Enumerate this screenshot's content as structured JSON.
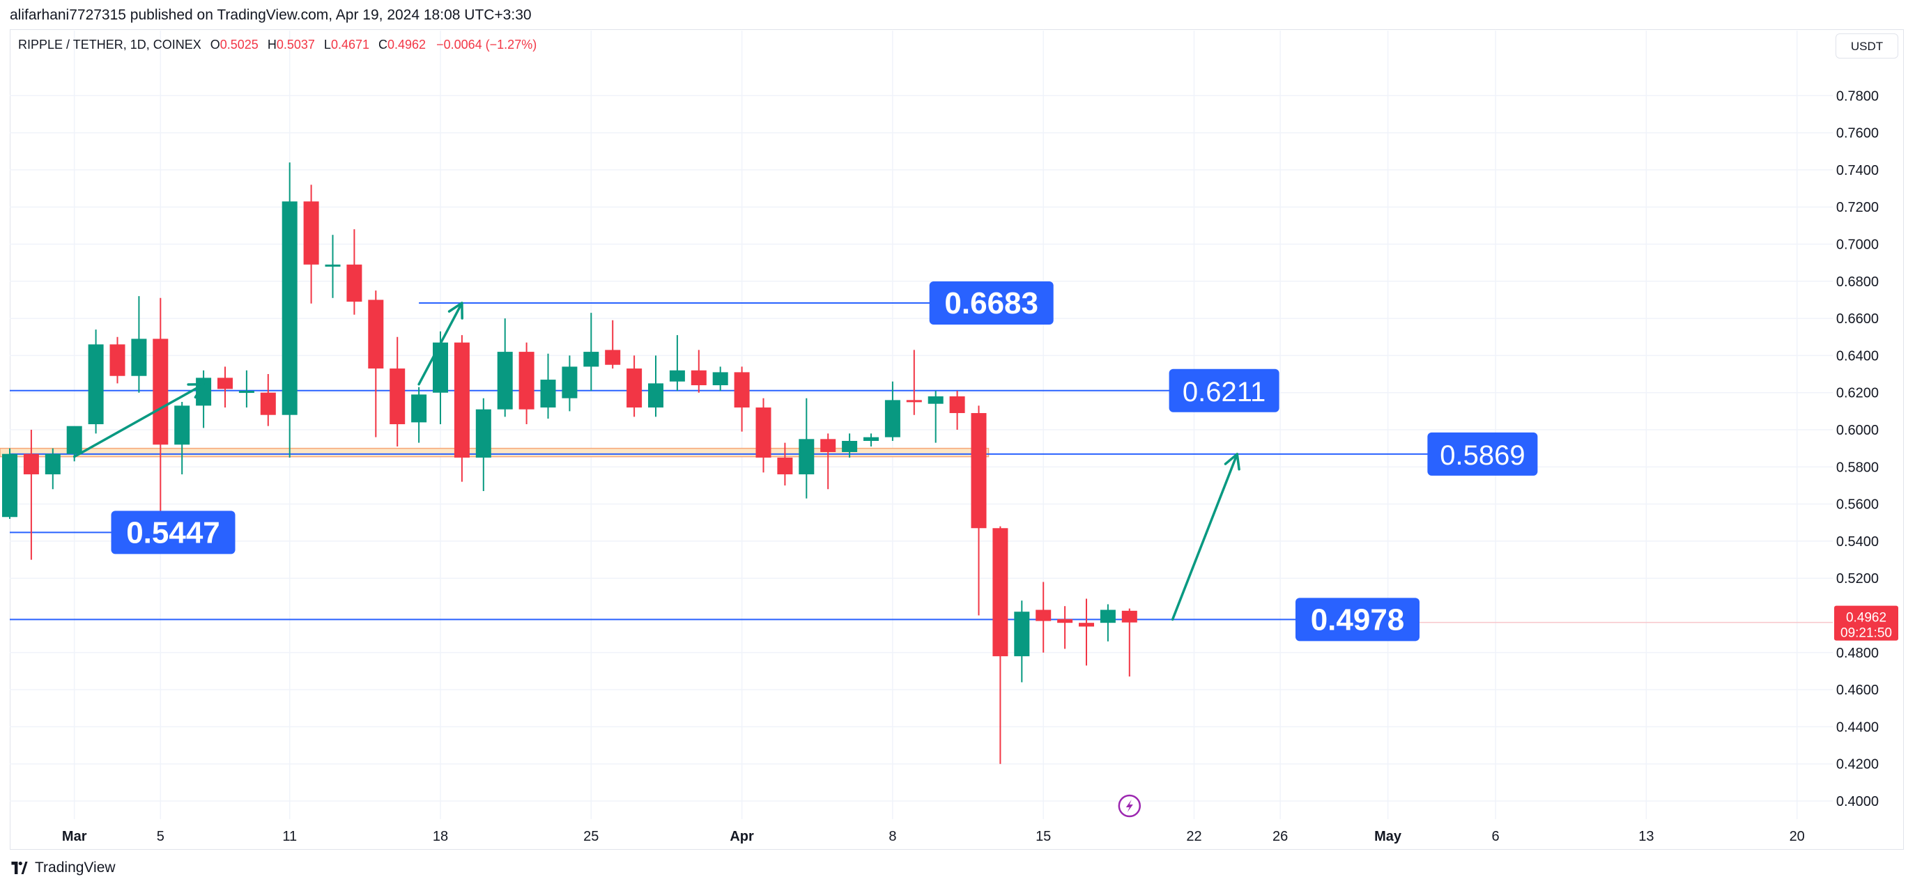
{
  "publish_line": "alifarhani7727315 published on TradingView.com, Apr 19, 2024 18:08 UTC+3:30",
  "legend": {
    "symbol": "RIPPLE / TETHER, 1D, COINEX",
    "open_label": "O",
    "open": "0.5025",
    "high_label": "H",
    "high": "0.5037",
    "low_label": "L",
    "low": "0.4671",
    "close_label": "C",
    "close": "0.4962",
    "change": "−0.0064 (−1.27%)"
  },
  "currency_button": "USDT",
  "footer_brand": "TradingView",
  "colors": {
    "up": "#089981",
    "down": "#f23645",
    "level_line": "#2962ff",
    "label_bg": "#2962ff",
    "zone_fill": "#fde6c4",
    "zone_border": "#f7a77a",
    "arrow": "#089981",
    "grid": "#f0f3fa",
    "axis_text": "#131722"
  },
  "chart_data": {
    "type": "candlestick",
    "x_axis": {
      "tick_labels": [
        "Mar",
        "5",
        "11",
        "18",
        "25",
        "Apr",
        "8",
        "15",
        "22",
        "26",
        "May",
        "6",
        "13",
        "20"
      ],
      "tick_dates": [
        "2024-03-01",
        "2024-03-05",
        "2024-03-11",
        "2024-03-18",
        "2024-03-25",
        "2024-04-01",
        "2024-04-08",
        "2024-04-15",
        "2024-04-22",
        "2024-04-26",
        "2024-05-01",
        "2024-05-06",
        "2024-05-13",
        "2024-05-20"
      ],
      "bold_labels": [
        "Mar",
        "Apr",
        "May"
      ],
      "range": [
        "2024-02-27",
        "2024-05-24"
      ]
    },
    "y_axis": {
      "range": [
        0.385,
        0.8
      ],
      "tick_values": [
        0.4,
        0.42,
        0.44,
        0.46,
        0.48,
        0.52,
        0.54,
        0.56,
        0.58,
        0.6,
        0.62,
        0.64,
        0.66,
        0.68,
        0.7,
        0.72,
        0.74,
        0.76,
        0.78
      ],
      "tick_labels": [
        "0.4000",
        "0.4200",
        "0.4400",
        "0.4600",
        "0.4800",
        "0.5200",
        "0.5400",
        "0.5600",
        "0.5800",
        "0.6000",
        "0.6200",
        "0.6400",
        "0.6600",
        "0.6800",
        "0.7000",
        "0.7200",
        "0.7400",
        "0.7600",
        "0.7800"
      ]
    },
    "grid": true,
    "candles": [
      {
        "date": "2024-02-27",
        "o": 0.553,
        "h": 0.59,
        "l": 0.552,
        "c": 0.587
      },
      {
        "date": "2024-02-28",
        "o": 0.587,
        "h": 0.6,
        "l": 0.53,
        "c": 0.576
      },
      {
        "date": "2024-02-29",
        "o": 0.576,
        "h": 0.59,
        "l": 0.568,
        "c": 0.587
      },
      {
        "date": "2024-03-01",
        "o": 0.587,
        "h": 0.598,
        "l": 0.583,
        "c": 0.602
      },
      {
        "date": "2024-03-02",
        "o": 0.603,
        "h": 0.654,
        "l": 0.598,
        "c": 0.646
      },
      {
        "date": "2024-03-03",
        "o": 0.646,
        "h": 0.65,
        "l": 0.625,
        "c": 0.629
      },
      {
        "date": "2024-03-04",
        "o": 0.629,
        "h": 0.672,
        "l": 0.62,
        "c": 0.649
      },
      {
        "date": "2024-03-05",
        "o": 0.649,
        "h": 0.671,
        "l": 0.535,
        "c": 0.592
      },
      {
        "date": "2024-03-06",
        "o": 0.592,
        "h": 0.615,
        "l": 0.576,
        "c": 0.613
      },
      {
        "date": "2024-03-07",
        "o": 0.613,
        "h": 0.632,
        "l": 0.601,
        "c": 0.628
      },
      {
        "date": "2024-03-08",
        "o": 0.628,
        "h": 0.634,
        "l": 0.612,
        "c": 0.622
      },
      {
        "date": "2024-03-09",
        "o": 0.62,
        "h": 0.632,
        "l": 0.612,
        "c": 0.621
      },
      {
        "date": "2024-03-10",
        "o": 0.62,
        "h": 0.63,
        "l": 0.602,
        "c": 0.608
      },
      {
        "date": "2024-03-11",
        "o": 0.608,
        "h": 0.744,
        "l": 0.585,
        "c": 0.723
      },
      {
        "date": "2024-03-12",
        "o": 0.723,
        "h": 0.732,
        "l": 0.668,
        "c": 0.689
      },
      {
        "date": "2024-03-13",
        "o": 0.689,
        "h": 0.705,
        "l": 0.671,
        "c": 0.689
      },
      {
        "date": "2024-03-14",
        "o": 0.689,
        "h": 0.708,
        "l": 0.662,
        "c": 0.669
      },
      {
        "date": "2024-03-15",
        "o": 0.67,
        "h": 0.675,
        "l": 0.596,
        "c": 0.633
      },
      {
        "date": "2024-03-16",
        "o": 0.633,
        "h": 0.65,
        "l": 0.591,
        "c": 0.603
      },
      {
        "date": "2024-03-17",
        "o": 0.604,
        "h": 0.623,
        "l": 0.593,
        "c": 0.619
      },
      {
        "date": "2024-03-18",
        "o": 0.62,
        "h": 0.653,
        "l": 0.603,
        "c": 0.647
      },
      {
        "date": "2024-03-19",
        "o": 0.647,
        "h": 0.651,
        "l": 0.572,
        "c": 0.585
      },
      {
        "date": "2024-03-20",
        "o": 0.585,
        "h": 0.617,
        "l": 0.567,
        "c": 0.611
      },
      {
        "date": "2024-03-21",
        "o": 0.611,
        "h": 0.66,
        "l": 0.607,
        "c": 0.642
      },
      {
        "date": "2024-03-22",
        "o": 0.642,
        "h": 0.647,
        "l": 0.603,
        "c": 0.611
      },
      {
        "date": "2024-03-23",
        "o": 0.612,
        "h": 0.641,
        "l": 0.606,
        "c": 0.627
      },
      {
        "date": "2024-03-24",
        "o": 0.617,
        "h": 0.64,
        "l": 0.61,
        "c": 0.634
      },
      {
        "date": "2024-03-25",
        "o": 0.634,
        "h": 0.663,
        "l": 0.621,
        "c": 0.642
      },
      {
        "date": "2024-03-26",
        "o": 0.643,
        "h": 0.659,
        "l": 0.633,
        "c": 0.635
      },
      {
        "date": "2024-03-27",
        "o": 0.633,
        "h": 0.64,
        "l": 0.607,
        "c": 0.612
      },
      {
        "date": "2024-03-28",
        "o": 0.612,
        "h": 0.64,
        "l": 0.607,
        "c": 0.625
      },
      {
        "date": "2024-03-29",
        "o": 0.626,
        "h": 0.651,
        "l": 0.621,
        "c": 0.632
      },
      {
        "date": "2024-03-30",
        "o": 0.632,
        "h": 0.643,
        "l": 0.62,
        "c": 0.624
      },
      {
        "date": "2024-03-31",
        "o": 0.624,
        "h": 0.634,
        "l": 0.621,
        "c": 0.631
      },
      {
        "date": "2024-04-01",
        "o": 0.631,
        "h": 0.634,
        "l": 0.599,
        "c": 0.612
      },
      {
        "date": "2024-04-02",
        "o": 0.612,
        "h": 0.617,
        "l": 0.577,
        "c": 0.585
      },
      {
        "date": "2024-04-03",
        "o": 0.585,
        "h": 0.593,
        "l": 0.57,
        "c": 0.576
      },
      {
        "date": "2024-04-04",
        "o": 0.576,
        "h": 0.617,
        "l": 0.563,
        "c": 0.595
      },
      {
        "date": "2024-04-05",
        "o": 0.595,
        "h": 0.598,
        "l": 0.568,
        "c": 0.588
      },
      {
        "date": "2024-04-06",
        "o": 0.588,
        "h": 0.598,
        "l": 0.585,
        "c": 0.594
      },
      {
        "date": "2024-04-07",
        "o": 0.594,
        "h": 0.598,
        "l": 0.591,
        "c": 0.596
      },
      {
        "date": "2024-04-08",
        "o": 0.596,
        "h": 0.626,
        "l": 0.594,
        "c": 0.616
      },
      {
        "date": "2024-04-09",
        "o": 0.616,
        "h": 0.643,
        "l": 0.608,
        "c": 0.615
      },
      {
        "date": "2024-04-10",
        "o": 0.614,
        "h": 0.621,
        "l": 0.593,
        "c": 0.618
      },
      {
        "date": "2024-04-11",
        "o": 0.618,
        "h": 0.621,
        "l": 0.6,
        "c": 0.609
      },
      {
        "date": "2024-04-12",
        "o": 0.609,
        "h": 0.613,
        "l": 0.5,
        "c": 0.547
      },
      {
        "date": "2024-04-13",
        "o": 0.547,
        "h": 0.548,
        "l": 0.42,
        "c": 0.478
      },
      {
        "date": "2024-04-14",
        "o": 0.478,
        "h": 0.508,
        "l": 0.464,
        "c": 0.502
      },
      {
        "date": "2024-04-15",
        "o": 0.503,
        "h": 0.518,
        "l": 0.48,
        "c": 0.497
      },
      {
        "date": "2024-04-16",
        "o": 0.498,
        "h": 0.505,
        "l": 0.482,
        "c": 0.496
      },
      {
        "date": "2024-04-17",
        "o": 0.496,
        "h": 0.509,
        "l": 0.473,
        "c": 0.494
      },
      {
        "date": "2024-04-18",
        "o": 0.496,
        "h": 0.506,
        "l": 0.486,
        "c": 0.503
      },
      {
        "date": "2024-04-19",
        "o": 0.5025,
        "h": 0.5037,
        "l": 0.4671,
        "c": 0.4962
      }
    ],
    "levels": [
      {
        "label": "0.6683",
        "value": 0.6683,
        "from": "2024-03-17",
        "label_at": "2024-04-10",
        "bold": true
      },
      {
        "label": "0.6211",
        "value": 0.6211,
        "from": "2024-02-27",
        "label_at": "2024-04-21",
        "bold": false
      },
      {
        "label": "0.5869",
        "value": 0.5869,
        "from": "2024-02-27",
        "label_at": "2024-05-03",
        "bold": false
      },
      {
        "label": "0.5447",
        "value": 0.5447,
        "from": "2024-02-27",
        "label_at": "2024-03-03",
        "bold": true
      },
      {
        "label": "0.4978",
        "value": 0.4978,
        "from": "2024-02-27",
        "label_at": "2024-04-27",
        "bold": true
      }
    ],
    "zone": {
      "from": "2024-02-27",
      "to": "2024-04-12",
      "low": 0.5855,
      "high": 0.59
    },
    "arrows": [
      {
        "from": [
          "2024-03-01",
          0.5855
        ],
        "to": [
          "2024-03-07",
          0.6245
        ]
      },
      {
        "from": [
          "2024-03-17",
          0.6245
        ],
        "to": [
          "2024-03-19",
          0.6683
        ]
      },
      {
        "from": [
          "2024-04-21",
          0.4978
        ],
        "to": [
          "2024-04-24",
          0.5869
        ]
      }
    ],
    "last_price": {
      "label": "0.4962",
      "countdown": "09:21:50",
      "value": 0.4962
    }
  }
}
